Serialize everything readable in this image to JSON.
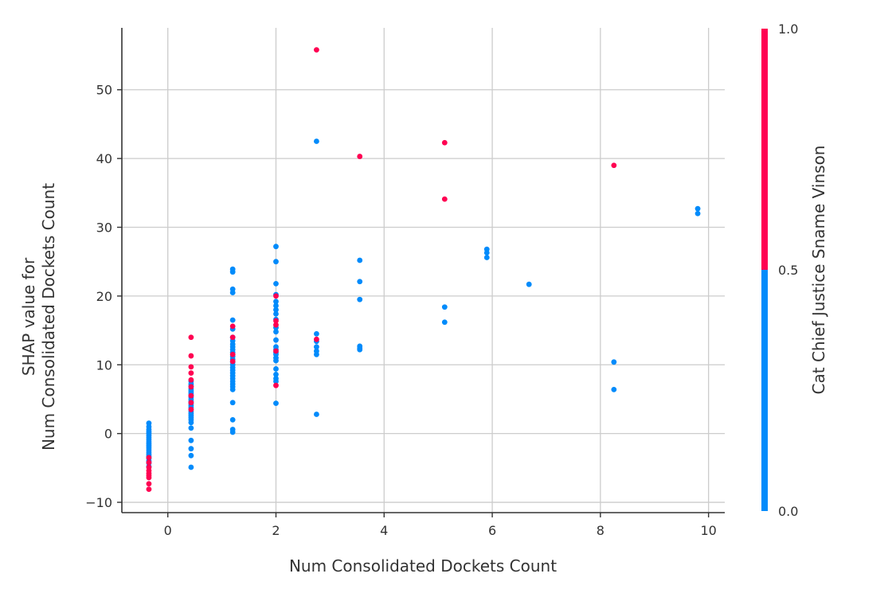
{
  "chart_data": {
    "type": "scatter",
    "title": "",
    "xlabel": "Num  Consolidated Dockets Count",
    "ylabel_lines": [
      "SHAP value for",
      "Num  Consolidated Dockets Count"
    ],
    "xlim": [
      -0.85,
      10.3
    ],
    "ylim": [
      -11.5,
      59
    ],
    "x_ticks": [
      0,
      2,
      4,
      6,
      8,
      10
    ],
    "x_tick_labels": [
      "0",
      "2",
      "4",
      "6",
      "8",
      "10"
    ],
    "y_ticks": [
      -10,
      0,
      10,
      20,
      30,
      40,
      50
    ],
    "y_tick_labels": [
      "−10",
      "0",
      "10",
      "20",
      "30",
      "40",
      "50"
    ],
    "grid": true,
    "colors": {
      "low": "#008bfb",
      "high": "#ff0052"
    },
    "colorbar": {
      "label": "Cat  Chief Justice Sname Vinson",
      "ticks": [
        0.0,
        0.5,
        1.0
      ],
      "tick_labels": [
        "0.0",
        "0.5",
        "1.0"
      ],
      "placement": "right"
    },
    "series": [
      {
        "color_value": 0,
        "x": [
          -0.35,
          -0.35,
          -0.35,
          -0.35,
          -0.35,
          -0.35,
          -0.35,
          -0.35,
          -0.35,
          -0.35,
          -0.35,
          -0.35,
          -0.35,
          -0.35,
          -0.35,
          -0.35,
          -0.35,
          -0.35,
          -0.35,
          -0.35,
          0.43,
          0.43,
          0.43,
          0.43,
          0.43,
          0.43,
          0.43,
          0.43,
          0.43,
          0.43,
          0.43,
          0.43,
          0.43,
          0.43,
          0.43,
          0.43,
          0.43,
          0.43,
          0.43,
          0.43,
          0.43,
          0.43,
          0.43,
          0.43,
          0.43,
          1.2,
          1.2,
          1.2,
          1.2,
          1.2,
          1.2,
          1.2,
          1.2,
          1.2,
          1.2,
          1.2,
          1.2,
          1.2,
          1.2,
          1.2,
          1.2,
          1.2,
          1.2,
          1.2,
          1.2,
          1.2,
          1.2,
          1.2,
          1.2,
          1.2,
          1.2,
          1.2,
          1.2,
          1.2,
          2.0,
          2.0,
          2.0,
          2.0,
          2.0,
          2.0,
          2.0,
          2.0,
          2.0,
          2.0,
          2.0,
          2.0,
          2.0,
          2.0,
          2.0,
          2.0,
          2.0,
          2.0,
          2.0,
          2.0,
          2.0,
          2.0,
          2.0,
          2.75,
          2.75,
          2.75,
          2.75,
          2.75,
          2.75,
          2.75,
          3.55,
          3.55,
          3.55,
          3.55,
          3.55,
          3.55,
          5.12,
          5.12,
          5.9,
          5.9,
          5.9,
          6.68,
          8.25,
          8.25,
          9.8,
          9.8
        ],
        "y": [
          1.5,
          1.0,
          0.6,
          0.3,
          0,
          -0.3,
          -0.6,
          -0.9,
          -1.2,
          -1.5,
          -1.8,
          -2.1,
          -2.4,
          -2.7,
          -3.0,
          -3.3,
          -3.6,
          -4.0,
          -4.3,
          -4.8,
          7.6,
          7.2,
          6.9,
          6.5,
          6.2,
          5.9,
          5.6,
          5.3,
          5.0,
          4.7,
          4.4,
          4.1,
          3.8,
          3.5,
          3.2,
          2.9,
          2.6,
          2.3,
          2.0,
          1.6,
          0.8,
          -1.0,
          -2.2,
          -3.2,
          -4.9,
          23.9,
          23.5,
          21.0,
          20.5,
          16.5,
          15.2,
          14.0,
          13.5,
          13.0,
          12.6,
          12.2,
          11.8,
          11.2,
          10.8,
          10.4,
          10.0,
          9.6,
          9.2,
          8.8,
          8.4,
          8.0,
          7.6,
          7.2,
          6.8,
          6.4,
          4.5,
          2.0,
          0.6,
          0.2,
          27.2,
          25.0,
          21.8,
          20.2,
          19.2,
          18.6,
          18.0,
          17.4,
          16.6,
          15.4,
          14.8,
          13.6,
          12.6,
          12.2,
          11.8,
          11.5,
          11.0,
          10.6,
          9.4,
          8.6,
          8.0,
          7.6,
          4.4,
          42.5,
          14.5,
          13.4,
          12.6,
          12.0,
          11.5,
          2.8,
          25.2,
          22.1,
          19.5,
          12.7,
          12.4,
          12.2,
          18.4,
          16.2,
          26.8,
          26.3,
          25.6,
          21.7,
          10.4,
          6.4,
          32.7,
          32.0
        ]
      },
      {
        "color_value": 1,
        "x": [
          -0.35,
          -0.35,
          -0.35,
          -0.35,
          -0.35,
          -0.35,
          -0.35,
          -0.35,
          -0.35,
          0.43,
          0.43,
          0.43,
          0.43,
          0.43,
          0.43,
          0.43,
          0.43,
          0.43,
          1.2,
          1.2,
          1.2,
          1.2,
          2.0,
          2.0,
          2.0,
          2.0,
          2.0,
          2.75,
          2.75,
          3.55,
          5.12,
          5.12,
          8.25
        ],
        "y": [
          -3.5,
          -4.2,
          -4.9,
          -5.4,
          -5.8,
          -6.1,
          -6.4,
          -7.3,
          -8.1,
          14.0,
          11.3,
          9.7,
          8.8,
          7.8,
          6.8,
          5.5,
          4.5,
          3.5,
          15.6,
          14.0,
          11.5,
          10.5,
          20.0,
          16.4,
          15.8,
          12.0,
          7.0,
          55.8,
          13.7,
          40.3,
          42.3,
          34.1,
          39.0
        ]
      }
    ]
  }
}
